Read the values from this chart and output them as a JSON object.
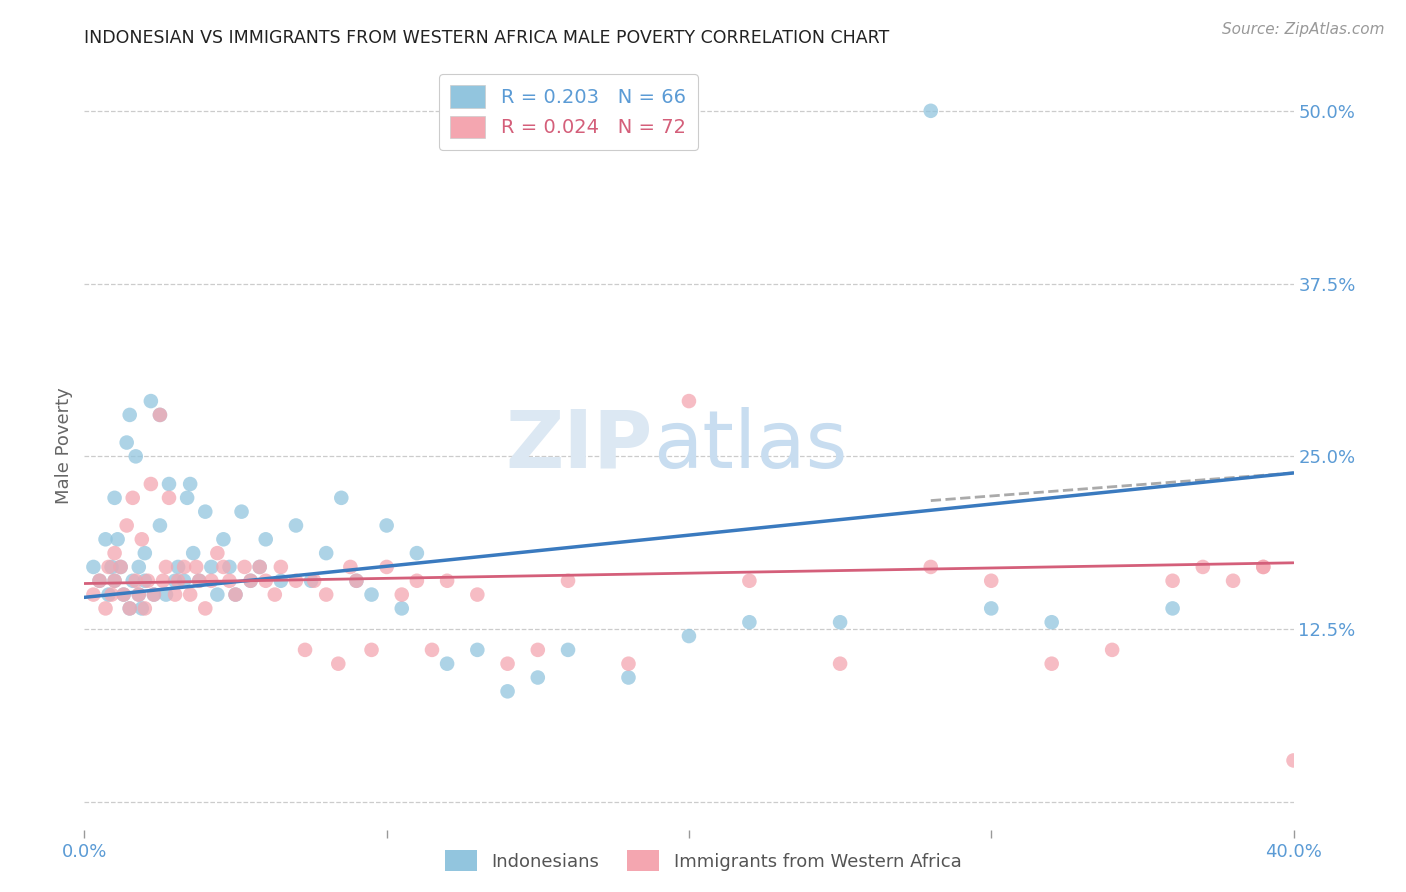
{
  "title": "INDONESIAN VS IMMIGRANTS FROM WESTERN AFRICA MALE POVERTY CORRELATION CHART",
  "source": "Source: ZipAtlas.com",
  "ylabel": "Male Poverty",
  "xlim": [
    0.0,
    0.4
  ],
  "ylim": [
    -0.02,
    0.535
  ],
  "legend_r1": "R = 0.203   N = 66",
  "legend_r2": "R = 0.024   N = 72",
  "legend_label1": "Indonesians",
  "legend_label2": "Immigrants from Western Africa",
  "blue_color": "#92c5de",
  "pink_color": "#f4a6b0",
  "blue_line_color": "#3a7abf",
  "pink_line_color": "#d45f7a",
  "dashed_line_color": "#aaaaaa",
  "watermark_zip": "ZIP",
  "watermark_atlas": "atlas",
  "blue_line_x": [
    0.0,
    0.4
  ],
  "blue_line_y": [
    0.148,
    0.238
  ],
  "pink_line_x": [
    0.0,
    0.4
  ],
  "pink_line_y": [
    0.158,
    0.173
  ],
  "dashed_line_x": [
    0.28,
    0.4
  ],
  "dashed_line_y": [
    0.218,
    0.238
  ],
  "indonesian_x": [
    0.003,
    0.005,
    0.007,
    0.008,
    0.009,
    0.01,
    0.01,
    0.011,
    0.012,
    0.013,
    0.014,
    0.015,
    0.015,
    0.016,
    0.017,
    0.018,
    0.018,
    0.019,
    0.02,
    0.02,
    0.022,
    0.023,
    0.025,
    0.025,
    0.027,
    0.028,
    0.03,
    0.031,
    0.033,
    0.034,
    0.035,
    0.036,
    0.038,
    0.04,
    0.042,
    0.044,
    0.046,
    0.048,
    0.05,
    0.052,
    0.055,
    0.058,
    0.06,
    0.065,
    0.07,
    0.075,
    0.08,
    0.085,
    0.09,
    0.095,
    0.1,
    0.105,
    0.11,
    0.12,
    0.13,
    0.14,
    0.15,
    0.16,
    0.18,
    0.2,
    0.22,
    0.25,
    0.28,
    0.3,
    0.32,
    0.36
  ],
  "indonesian_y": [
    0.17,
    0.16,
    0.19,
    0.15,
    0.17,
    0.22,
    0.16,
    0.19,
    0.17,
    0.15,
    0.26,
    0.14,
    0.28,
    0.16,
    0.25,
    0.15,
    0.17,
    0.14,
    0.16,
    0.18,
    0.29,
    0.15,
    0.2,
    0.28,
    0.15,
    0.23,
    0.16,
    0.17,
    0.16,
    0.22,
    0.23,
    0.18,
    0.16,
    0.21,
    0.17,
    0.15,
    0.19,
    0.17,
    0.15,
    0.21,
    0.16,
    0.17,
    0.19,
    0.16,
    0.2,
    0.16,
    0.18,
    0.22,
    0.16,
    0.15,
    0.2,
    0.14,
    0.18,
    0.1,
    0.11,
    0.08,
    0.09,
    0.11,
    0.09,
    0.12,
    0.13,
    0.13,
    0.5,
    0.14,
    0.13,
    0.14
  ],
  "wa_x": [
    0.003,
    0.005,
    0.007,
    0.008,
    0.009,
    0.01,
    0.01,
    0.012,
    0.013,
    0.014,
    0.015,
    0.016,
    0.017,
    0.018,
    0.019,
    0.02,
    0.021,
    0.022,
    0.023,
    0.025,
    0.026,
    0.027,
    0.028,
    0.03,
    0.031,
    0.033,
    0.035,
    0.037,
    0.038,
    0.04,
    0.042,
    0.044,
    0.046,
    0.048,
    0.05,
    0.053,
    0.055,
    0.058,
    0.06,
    0.063,
    0.065,
    0.07,
    0.073,
    0.076,
    0.08,
    0.084,
    0.088,
    0.09,
    0.095,
    0.1,
    0.105,
    0.11,
    0.115,
    0.12,
    0.13,
    0.14,
    0.15,
    0.16,
    0.18,
    0.2,
    0.22,
    0.25,
    0.28,
    0.3,
    0.32,
    0.34,
    0.36,
    0.37,
    0.38,
    0.39,
    0.39,
    0.4
  ],
  "wa_y": [
    0.15,
    0.16,
    0.14,
    0.17,
    0.15,
    0.16,
    0.18,
    0.17,
    0.15,
    0.2,
    0.14,
    0.22,
    0.16,
    0.15,
    0.19,
    0.14,
    0.16,
    0.23,
    0.15,
    0.28,
    0.16,
    0.17,
    0.22,
    0.15,
    0.16,
    0.17,
    0.15,
    0.17,
    0.16,
    0.14,
    0.16,
    0.18,
    0.17,
    0.16,
    0.15,
    0.17,
    0.16,
    0.17,
    0.16,
    0.15,
    0.17,
    0.16,
    0.11,
    0.16,
    0.15,
    0.1,
    0.17,
    0.16,
    0.11,
    0.17,
    0.15,
    0.16,
    0.11,
    0.16,
    0.15,
    0.1,
    0.11,
    0.16,
    0.1,
    0.29,
    0.16,
    0.1,
    0.17,
    0.16,
    0.1,
    0.11,
    0.16,
    0.17,
    0.16,
    0.17,
    0.17,
    0.03
  ]
}
